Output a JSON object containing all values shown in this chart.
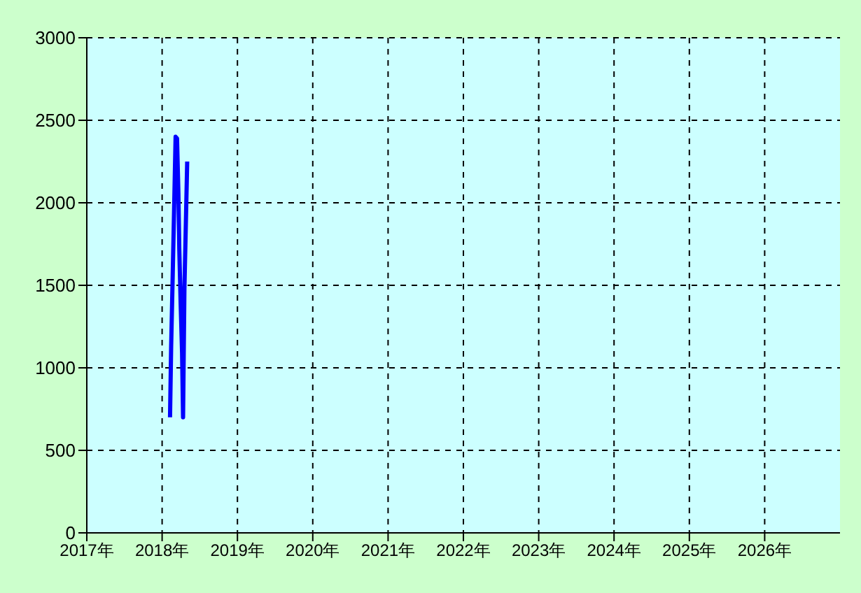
{
  "chart_data": {
    "type": "line",
    "x": [
      2018.105,
      2018.12,
      2018.14,
      2018.16,
      2018.179,
      2018.198,
      2018.216,
      2018.228,
      2018.246,
      2018.265,
      2018.278,
      2018.296,
      2018.315,
      2018.333
    ],
    "series": [
      {
        "color": "#0000ff",
        "values": [
          700,
          1130,
          1550,
          1980,
          2400,
          2390,
          2060,
          1720,
          1390,
          1090,
          700,
          1480,
          1870,
          2250
        ]
      }
    ],
    "xlim": [
      2017,
      2027
    ],
    "xticks": [
      {
        "value": 2017,
        "label": "2017年"
      },
      {
        "value": 2018,
        "label": "2018年"
      },
      {
        "value": 2019,
        "label": "2019年"
      },
      {
        "value": 2020,
        "label": "2020年"
      },
      {
        "value": 2021,
        "label": "2021年"
      },
      {
        "value": 2022,
        "label": "2022年"
      },
      {
        "value": 2023,
        "label": "2023年"
      },
      {
        "value": 2024,
        "label": "2024年"
      },
      {
        "value": 2025,
        "label": "2025年"
      },
      {
        "value": 2026,
        "label": "2026年"
      }
    ],
    "ylim": [
      0,
      3000
    ],
    "yticks": [
      0,
      500,
      1000,
      1500,
      2000,
      2500,
      3000
    ],
    "grid": true,
    "marker": "none",
    "line_style": "solid"
  }
}
